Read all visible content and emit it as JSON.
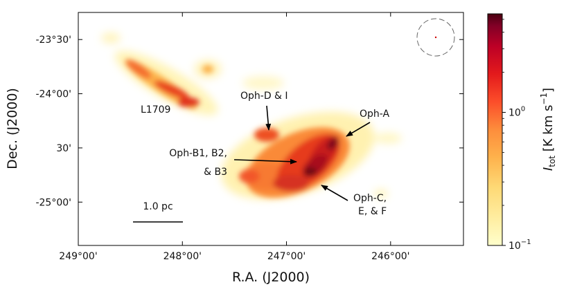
{
  "chart_data": {
    "type": "heatmap",
    "title": "",
    "xlabel": "R.A. (J2000)",
    "ylabel": "Dec. (J2000)",
    "xlim_deg": [
      249.0,
      245.3
    ],
    "ylim_deg": [
      -25.4,
      -23.25
    ],
    "x_ticks": [
      {
        "deg": 249.0,
        "label": "249°00'"
      },
      {
        "deg": 248.0,
        "label": "248°00'"
      },
      {
        "deg": 247.0,
        "label": "247°00'"
      },
      {
        "deg": 246.0,
        "label": "246°00'"
      }
    ],
    "y_ticks": [
      {
        "deg": -23.5,
        "label": "-23°30'"
      },
      {
        "deg": -24.0,
        "label": "-24°00'"
      },
      {
        "deg": -24.5,
        "label": "30'"
      },
      {
        "deg": -25.0,
        "label": "-25°00'"
      }
    ],
    "colorbar": {
      "label_main": "I",
      "label_sub": "tot",
      "label_units": " [K km s",
      "label_exp": "−1",
      "label_end": "]",
      "scale": "log",
      "range": [
        0.1,
        5.5
      ],
      "ticks": [
        {
          "value": 1.0,
          "base": "10",
          "exp": "0"
        },
        {
          "value": 0.1,
          "base": "10",
          "exp": "−1"
        }
      ],
      "colormap": [
        "#ffffcc",
        "#ffeda0",
        "#fed976",
        "#feb24c",
        "#fd8d3c",
        "#fc4e2a",
        "#e31a1c",
        "#bd0026",
        "#800026",
        "#4a0010"
      ]
    },
    "regions": [
      {
        "name": "L1709",
        "label": "L1709",
        "ra": 248.15,
        "dec": -24.03
      },
      {
        "name": "oph-d-i",
        "label": "Oph-D & I",
        "ra": 247.18,
        "dec": -24.27
      },
      {
        "name": "oph-a",
        "label": "Oph-A",
        "ra": 246.53,
        "dec": -24.35
      },
      {
        "name": "oph-b",
        "label": "Oph-B1, B2, & B3",
        "ra": 246.9,
        "dec": -24.49
      },
      {
        "name": "oph-c-e-f",
        "label": "Oph-C, E, & F",
        "ra": 246.68,
        "dec": -24.64
      }
    ],
    "annotations": {
      "scale_bar_label": "1.0 pc",
      "oph_d_label": "Oph-D & I",
      "oph_a_label": "Oph-A",
      "oph_b_line1": "Oph-B1, B2,",
      "oph_b_line2": "& B3",
      "oph_c_line1": "Oph-C,",
      "oph_c_line2": "E, & F",
      "l1709_label": "L1709"
    }
  }
}
